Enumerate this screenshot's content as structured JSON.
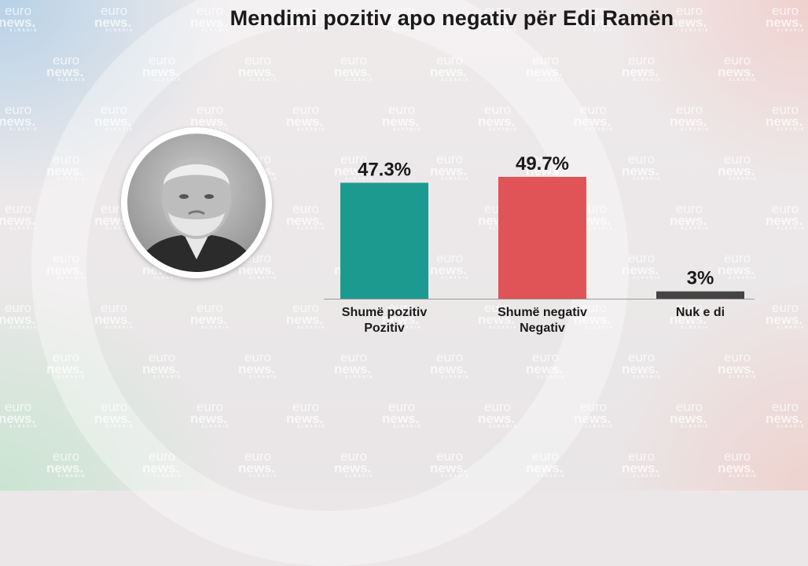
{
  "chart_data": {
    "type": "bar",
    "title": "Mendimi pozitiv apo negativ për Edi Ramën",
    "categories": [
      [
        "Shumë pozitiv",
        "Pozitiv"
      ],
      [
        "Shumë negativ",
        "Negativ"
      ],
      [
        "Nuk e di"
      ]
    ],
    "values": [
      47.3,
      49.7,
      3
    ],
    "value_labels": [
      "47.3%",
      "49.7%",
      "3%"
    ],
    "colors": [
      "#1c9a8f",
      "#e05356",
      "#444444"
    ],
    "ylim": [
      0,
      100
    ],
    "grid": false,
    "legend": "none"
  },
  "watermark": {
    "line1": "euro",
    "line2": "news.",
    "line3": "ALBANIA"
  },
  "photo": {
    "icon": "portrait-photo-icon"
  }
}
